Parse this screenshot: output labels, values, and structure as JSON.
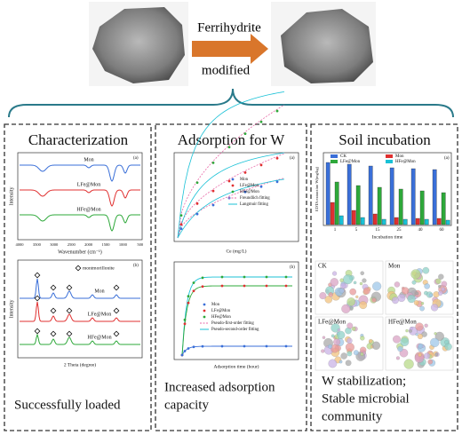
{
  "header": {
    "arrow_text_top": "Ferrihydrite",
    "arrow_text_bottom": "modified"
  },
  "panels": [
    {
      "title": "Characterization",
      "ftir": {
        "panel_label": "(a)",
        "series": [
          "Mon",
          "LFe@Mon",
          "HFe@Mon"
        ],
        "xticks": [
          "4000",
          "3500",
          "3000",
          "2500",
          "2000",
          "1500",
          "1000",
          "500"
        ],
        "x_label": "Wavenumber (cm⁻¹)",
        "y_label": "Intensity"
      },
      "xrd": {
        "panel_label": "(b)",
        "legend": "montmorillonite",
        "series": [
          "Mon",
          "LFe@Mon",
          "HFe@Mon"
        ],
        "x_label": "2 Theta (degree)",
        "y_label": "Intensity"
      },
      "caption": [
        "Successfully loaded"
      ]
    },
    {
      "title": "Adsorption for W",
      "isotherm": {
        "panel_label": "(a)",
        "legend": [
          "Mon",
          "LFe@Mon",
          "HFe@Mon",
          "Freundlich fitting",
          "Langmuir fitting"
        ],
        "x_label": "Ce (mg/L)"
      },
      "kinetics": {
        "panel_label": "(b)",
        "legend": [
          "Mon",
          "LFe@Mon",
          "HFe@Mon",
          "Pseudo-first-order fitting",
          "Pseudo-second-order fitting"
        ],
        "x_label": "Adsorption time (hour)"
      },
      "caption": [
        "Increased adsorption",
        "capacity"
      ]
    },
    {
      "title": "Soil incubation",
      "bars": {
        "panel_label": "(a)",
        "legend": [
          "CK",
          "Mon",
          "LFe@Mon",
          "HFe@Mon"
        ],
        "xticks": [
          "1",
          "5",
          "15",
          "25",
          "40",
          "60"
        ],
        "x_label": "Incubation time",
        "y_label": "EDTA extraction W(mg/kg)"
      },
      "networks": [
        "CK",
        "Mon",
        "LFe@Mon",
        "HFe@Mon"
      ],
      "caption": [
        "W stabilization;",
        "Stable microbial",
        "community"
      ]
    }
  ]
}
